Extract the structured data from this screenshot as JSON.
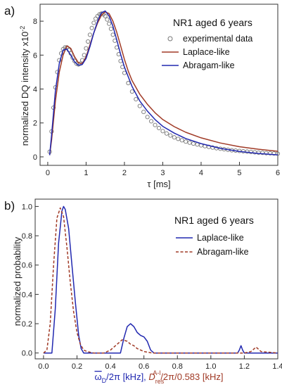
{
  "chart_data": [
    {
      "type": "scatter",
      "panel_label": "a)",
      "title": "NR1 aged 6 years",
      "xlabel": "τ [ms]",
      "ylabel": "normalized DQ intensity x10",
      "ylabel_exponent": "-2",
      "xlim": [
        -0.2,
        6
      ],
      "ylim": [
        -0.5,
        9
      ],
      "xticks": [
        0,
        1,
        2,
        3,
        4,
        5,
        6
      ],
      "yticks": [
        0,
        2,
        4,
        6,
        8
      ],
      "grid": false,
      "legend_position": "top-right",
      "series": [
        {
          "name": "experimental data",
          "style": "open-circles",
          "color": "#777777",
          "x": [
            0.05,
            0.1,
            0.15,
            0.2,
            0.25,
            0.3,
            0.35,
            0.4,
            0.45,
            0.5,
            0.55,
            0.6,
            0.65,
            0.7,
            0.75,
            0.8,
            0.85,
            0.9,
            0.95,
            1.0,
            1.05,
            1.1,
            1.15,
            1.2,
            1.25,
            1.3,
            1.35,
            1.4,
            1.45,
            1.5,
            1.55,
            1.6,
            1.65,
            1.7,
            1.75,
            1.8,
            1.85,
            1.9,
            1.95,
            2.0,
            2.1,
            2.2,
            2.3,
            2.4,
            2.5,
            2.6,
            2.7,
            2.8,
            2.9,
            3.0,
            3.1,
            3.2,
            3.3,
            3.4,
            3.5,
            3.6,
            3.7,
            3.8,
            3.9,
            4.0,
            4.1,
            4.2,
            4.3,
            4.4,
            4.5,
            4.6,
            4.7,
            4.8,
            4.9,
            5.0,
            5.1,
            5.2,
            5.3,
            5.4,
            5.5,
            5.6,
            5.7,
            5.8,
            5.9,
            6.0
          ],
          "y": [
            0.3,
            1.5,
            2.9,
            4.1,
            5.0,
            5.7,
            6.1,
            6.35,
            6.45,
            6.45,
            6.3,
            6.1,
            5.85,
            5.65,
            5.5,
            5.45,
            5.5,
            5.7,
            6.0,
            6.4,
            6.8,
            7.2,
            7.6,
            7.9,
            8.15,
            8.3,
            8.4,
            8.45,
            8.4,
            8.3,
            8.1,
            7.85,
            7.55,
            7.2,
            6.85,
            6.45,
            6.05,
            5.65,
            5.3,
            4.95,
            4.35,
            3.85,
            3.4,
            3.0,
            2.65,
            2.35,
            2.1,
            1.88,
            1.7,
            1.52,
            1.38,
            1.26,
            1.15,
            1.06,
            0.98,
            0.9,
            0.84,
            0.78,
            0.73,
            0.68,
            0.63,
            0.59,
            0.55,
            0.51,
            0.48,
            0.45,
            0.42,
            0.39,
            0.37,
            0.35,
            0.33,
            0.31,
            0.29,
            0.27,
            0.25,
            0.24,
            0.22,
            0.21,
            0.2,
            0.19
          ]
        },
        {
          "name": "Laplace-like",
          "style": "line",
          "color": "#a03a26",
          "x": [
            0.05,
            0.1,
            0.2,
            0.3,
            0.4,
            0.5,
            0.6,
            0.7,
            0.8,
            0.9,
            1.0,
            1.1,
            1.2,
            1.3,
            1.4,
            1.5,
            1.6,
            1.7,
            1.8,
            1.9,
            2.0,
            2.1,
            2.2,
            2.4,
            2.6,
            2.8,
            3.0,
            3.3,
            3.6,
            4.0,
            4.5,
            5.0,
            5.5,
            6.0
          ],
          "y": [
            0.1,
            1.0,
            3.3,
            5.0,
            6.0,
            6.55,
            6.4,
            5.9,
            5.55,
            5.5,
            5.9,
            6.6,
            7.3,
            7.9,
            8.35,
            8.55,
            8.45,
            8.0,
            7.35,
            6.55,
            5.75,
            5.05,
            4.5,
            3.7,
            3.1,
            2.6,
            2.2,
            1.78,
            1.45,
            1.12,
            0.82,
            0.6,
            0.45,
            0.33
          ]
        },
        {
          "name": "Abragam-like",
          "style": "line",
          "color": "#2128b0",
          "x": [
            0.05,
            0.1,
            0.2,
            0.3,
            0.4,
            0.5,
            0.6,
            0.7,
            0.8,
            0.9,
            1.0,
            1.1,
            1.2,
            1.3,
            1.4,
            1.5,
            1.6,
            1.7,
            1.8,
            1.9,
            2.0,
            2.2,
            2.4,
            2.6,
            2.8,
            3.0,
            3.3,
            3.6,
            4.0,
            4.5,
            5.0,
            5.5,
            6.0
          ],
          "y": [
            0.1,
            1.3,
            3.9,
            5.5,
            6.3,
            6.35,
            6.0,
            5.6,
            5.4,
            5.45,
            5.8,
            6.5,
            7.3,
            8.0,
            8.5,
            8.6,
            8.3,
            7.7,
            6.9,
            6.05,
            5.3,
            4.15,
            3.3,
            2.7,
            2.2,
            1.8,
            1.4,
            1.08,
            0.78,
            0.5,
            0.32,
            0.2,
            0.12
          ]
        }
      ]
    },
    {
      "type": "line",
      "panel_label": "b)",
      "title": "NR1 aged 6 years",
      "xlabel_parts": [
        "ω",
        "D",
        "/2π [kHz], ",
        "D",
        "res",
        "A-l",
        "/2π/0.583 [kHz]"
      ],
      "ylabel": "normalized probability",
      "xlim": [
        -0.05,
        1.4
      ],
      "ylim": [
        -0.04,
        1.05
      ],
      "xticks": [
        0.0,
        0.2,
        0.4,
        0.6,
        0.8,
        1.0,
        1.2,
        1.4
      ],
      "yticks": [
        0.0,
        0.2,
        0.4,
        0.6,
        0.8,
        1.0
      ],
      "grid": false,
      "legend_position": "top-right",
      "series": [
        {
          "name": "Laplace-like",
          "style": "solid",
          "color": "#2128b0",
          "x": [
            0.0,
            0.05,
            0.07,
            0.09,
            0.11,
            0.12,
            0.13,
            0.15,
            0.17,
            0.19,
            0.21,
            0.225,
            0.24,
            0.3,
            0.4,
            0.46,
            0.48,
            0.5,
            0.52,
            0.54,
            0.56,
            0.58,
            0.6,
            0.62,
            0.64,
            0.66,
            0.8,
            1.0,
            1.16,
            1.17,
            1.18,
            1.19,
            1.2,
            1.3,
            1.4
          ],
          "y": [
            0,
            0,
            0.3,
            0.75,
            0.97,
            1.0,
            0.98,
            0.85,
            0.6,
            0.35,
            0.12,
            0.03,
            0,
            0,
            0,
            0,
            0.1,
            0.18,
            0.2,
            0.18,
            0.14,
            0.12,
            0.11,
            0.08,
            0.02,
            0,
            0,
            0,
            0,
            0.02,
            0.05,
            0.02,
            0,
            0,
            0
          ]
        },
        {
          "name": "Abragam-like",
          "style": "dashed",
          "color": "#a03a26",
          "x": [
            0.0,
            0.02,
            0.04,
            0.06,
            0.08,
            0.1,
            0.12,
            0.14,
            0.16,
            0.18,
            0.2,
            0.22,
            0.24,
            0.26,
            0.3,
            0.36,
            0.4,
            0.44,
            0.47,
            0.5,
            0.52,
            0.54,
            0.56,
            0.6,
            0.65,
            0.8,
            1.0,
            1.2,
            1.24,
            1.27,
            1.3,
            1.4
          ],
          "y": [
            0,
            0.02,
            0.2,
            0.6,
            0.92,
            0.99,
            0.93,
            0.72,
            0.48,
            0.28,
            0.14,
            0.06,
            0.02,
            0.01,
            0,
            0,
            0.02,
            0.06,
            0.09,
            0.08,
            0.06,
            0.05,
            0.03,
            0.01,
            0,
            0,
            0,
            0,
            0.01,
            0.04,
            0.01,
            0
          ]
        }
      ]
    }
  ]
}
